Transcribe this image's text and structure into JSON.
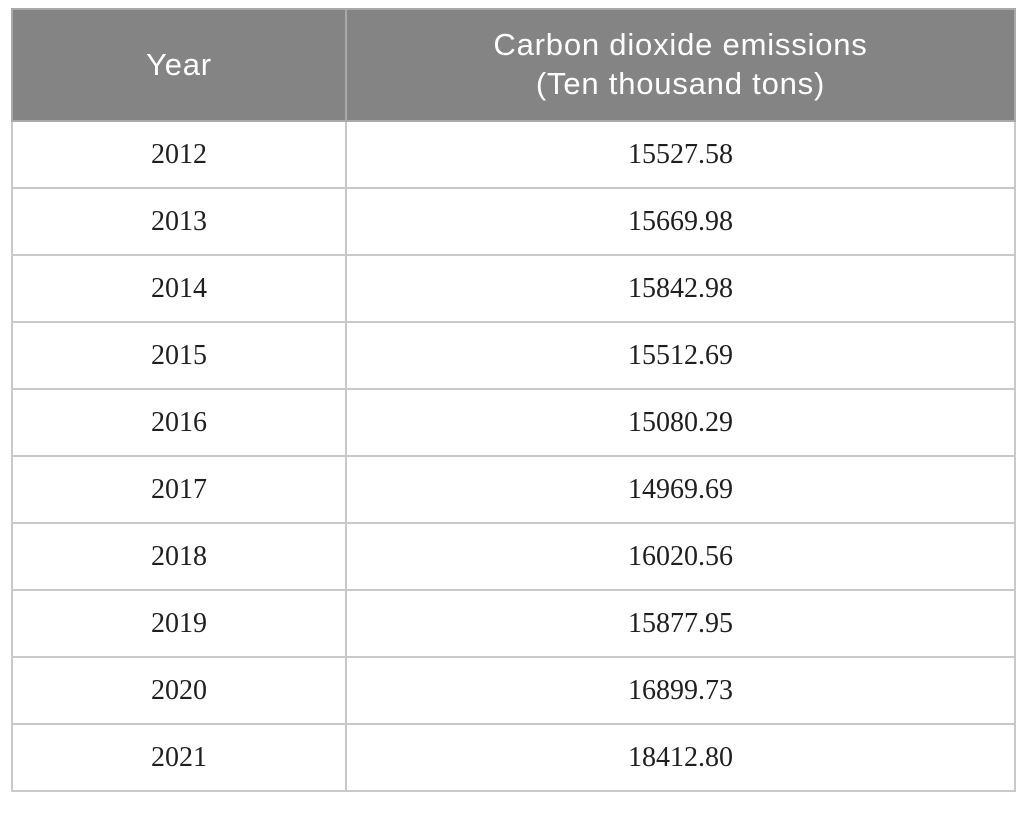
{
  "table": {
    "header": {
      "year": "Year",
      "emissions_line1": "Carbon dioxide emissions",
      "emissions_line2": "(Ten thousand tons)"
    }
  },
  "chart_data": {
    "type": "table",
    "columns": [
      "Year",
      "Carbon dioxide emissions (Ten thousand tons)"
    ],
    "rows": [
      [
        "2012",
        "15527.58"
      ],
      [
        "2013",
        "15669.98"
      ],
      [
        "2014",
        "15842.98"
      ],
      [
        "2015",
        "15512.69"
      ],
      [
        "2016",
        "15080.29"
      ],
      [
        "2017",
        "14969.69"
      ],
      [
        "2018",
        "16020.56"
      ],
      [
        "2019",
        "15877.95"
      ],
      [
        "2020",
        "16899.73"
      ],
      [
        "2021",
        "18412.80"
      ]
    ]
  },
  "colors": {
    "header_background": "#848484",
    "header_text": "#ffffff",
    "cell_text": "#1f1f1f",
    "inner_border": "#c9c9c9",
    "outer_border": "#a9a9a9",
    "page_background": "#ffffff"
  }
}
